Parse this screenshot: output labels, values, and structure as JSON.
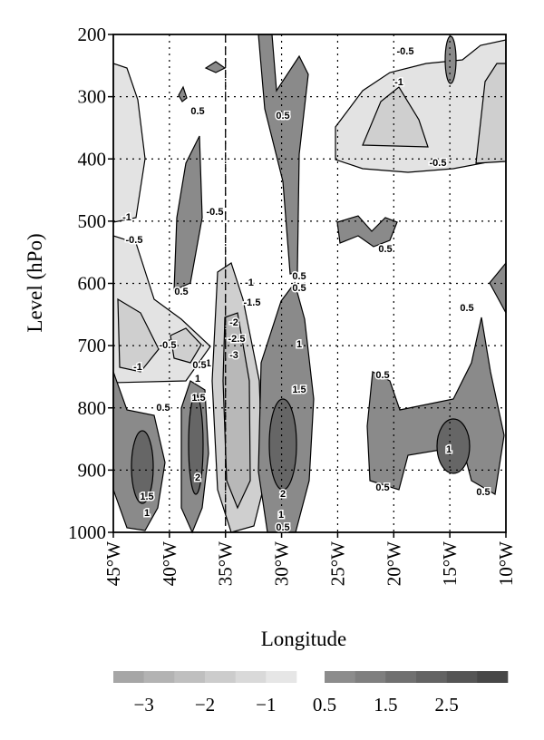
{
  "chart_data": {
    "type": "contour",
    "xlabel": "Longitude",
    "ylabel": "Level (hPo)",
    "xlim": [
      -45,
      -10
    ],
    "xticks": [
      {
        "value": -45,
        "label": "45°W"
      },
      {
        "value": -40,
        "label": "40°W"
      },
      {
        "value": -35,
        "label": "35°W"
      },
      {
        "value": -30,
        "label": "30°W"
      },
      {
        "value": -25,
        "label": "25°W"
      },
      {
        "value": -20,
        "label": "20°W"
      },
      {
        "value": -15,
        "label": "15°W"
      },
      {
        "value": -10,
        "label": "10°W"
      }
    ],
    "ylim": [
      200,
      1000
    ],
    "y_reversed": true,
    "yticks": [
      200,
      300,
      400,
      500,
      600,
      700,
      800,
      900,
      1000
    ],
    "grid": true,
    "contour_labels": [
      -0.5,
      -1,
      0.5,
      0.5,
      -0.5,
      -1,
      -0.5,
      -0.5,
      0.5,
      0.5,
      0.5,
      0.5,
      -1,
      -1.5,
      -2,
      -2.5,
      -3,
      -0.5,
      -1,
      -1,
      0.5,
      1,
      1.5,
      0.5,
      1,
      1.5,
      0.5,
      0.5,
      2,
      2,
      1,
      0.5,
      1.5,
      1,
      0.5,
      1,
      0.5
    ],
    "colorbar": {
      "negative": {
        "range": [
          -3.5,
          -0.5
        ],
        "colors": [
          "#a6a6a6",
          "#b3b3b3",
          "#bfbfbf",
          "#cccccc",
          "#d9d9d9",
          "#e6e6e6"
        ]
      },
      "positive": {
        "range": [
          0.5,
          3.5
        ],
        "colors": [
          "#8c8c8c",
          "#7f7f7f",
          "#707070",
          "#636363",
          "#555555",
          "#474747"
        ]
      },
      "ticks": [
        {
          "value": -3,
          "label": "−3"
        },
        {
          "value": -2,
          "label": "−2"
        },
        {
          "value": -1,
          "label": "−1"
        },
        0.5,
        1.5,
        2.5
      ]
    }
  }
}
